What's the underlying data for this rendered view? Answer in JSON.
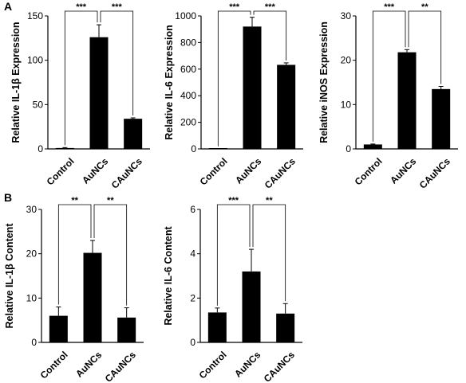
{
  "panels": [
    {
      "label": "A"
    },
    {
      "label": "B"
    }
  ],
  "chart_data": [
    {
      "type": "bar",
      "panel": "A",
      "categories": [
        "Control",
        "AuNCs",
        "CAuNCs"
      ],
      "values": [
        1,
        126,
        34
      ],
      "errors": [
        0.5,
        14,
        1
      ],
      "ylabel": "Relative IL-1β Expression",
      "ylim": [
        0,
        150
      ],
      "yticks": [
        0,
        50,
        100,
        150
      ],
      "significance": [
        {
          "from": "Control",
          "to": "AuNCs",
          "label": "***"
        },
        {
          "from": "AuNCs",
          "to": "CAuNCs",
          "label": "***"
        }
      ]
    },
    {
      "type": "bar",
      "panel": "A",
      "categories": [
        "Control",
        "AuNCs",
        "CAuNCs"
      ],
      "values": [
        1,
        920,
        632
      ],
      "errors": [
        0.5,
        70,
        15
      ],
      "ylabel": "Relative IL-6 Expression",
      "ylim": [
        0,
        1000
      ],
      "yticks": [
        0,
        200,
        400,
        600,
        800,
        1000
      ],
      "significance": [
        {
          "from": "Control",
          "to": "AuNCs",
          "label": "***"
        },
        {
          "from": "AuNCs",
          "to": "CAuNCs",
          "label": "***"
        }
      ]
    },
    {
      "type": "bar",
      "panel": "A",
      "categories": [
        "Control",
        "AuNCs",
        "CAuNCs"
      ],
      "values": [
        1,
        21.8,
        13.5
      ],
      "errors": [
        0.1,
        0.6,
        0.6
      ],
      "ylabel": "Relative iNOS Expression",
      "ylim": [
        0,
        30
      ],
      "yticks": [
        0,
        10,
        20,
        30
      ],
      "significance": [
        {
          "from": "Control",
          "to": "AuNCs",
          "label": "***"
        },
        {
          "from": "AuNCs",
          "to": "CAuNCs",
          "label": "**"
        }
      ]
    },
    {
      "type": "bar",
      "panel": "B",
      "categories": [
        "Control",
        "AuNCs",
        "CAuNCs"
      ],
      "values": [
        6,
        20.2,
        5.6
      ],
      "errors": [
        2,
        2.8,
        2.2
      ],
      "ylabel": "Relative IL-1β Content",
      "ylim": [
        0,
        30
      ],
      "yticks": [
        0,
        10,
        20,
        30
      ],
      "significance": [
        {
          "from": "Control",
          "to": "AuNCs",
          "label": "**"
        },
        {
          "from": "AuNCs",
          "to": "CAuNCs",
          "label": "**"
        }
      ]
    },
    {
      "type": "bar",
      "panel": "B",
      "categories": [
        "Control",
        "AuNCs",
        "CAuNCs"
      ],
      "values": [
        1.35,
        3.2,
        1.3
      ],
      "errors": [
        0.2,
        1.0,
        0.45
      ],
      "ylabel": "Relative IL-6 Content",
      "ylim": [
        0,
        6
      ],
      "yticks": [
        0,
        2,
        4,
        6
      ],
      "significance": [
        {
          "from": "Control",
          "to": "AuNCs",
          "label": "***"
        },
        {
          "from": "AuNCs",
          "to": "CAuNCs",
          "label": "**"
        }
      ]
    }
  ]
}
